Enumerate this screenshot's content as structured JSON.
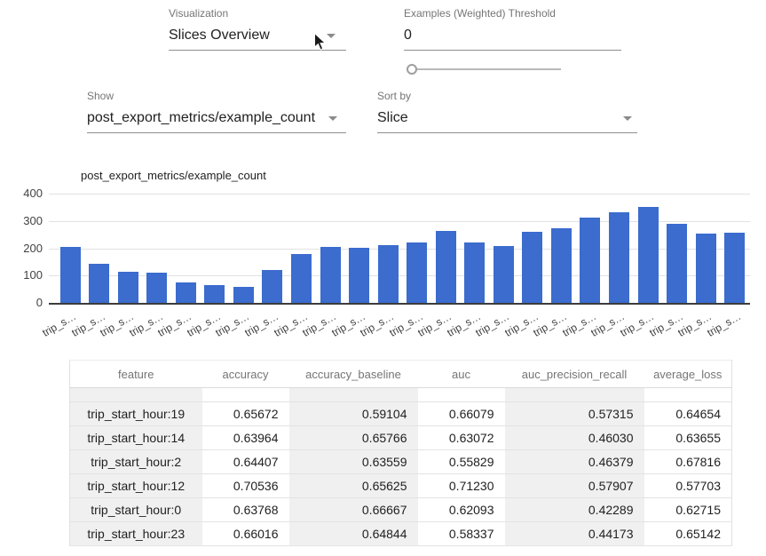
{
  "controls": {
    "visualization": {
      "label": "Visualization",
      "value": "Slices Overview"
    },
    "threshold": {
      "label": "Examples (Weighted) Threshold",
      "value": "0",
      "slider_value": 0
    },
    "show": {
      "label": "Show",
      "value": "post_export_metrics/example_count"
    },
    "sort": {
      "label": "Sort by",
      "value": "Slice"
    }
  },
  "chart_data": {
    "type": "bar",
    "legend": {
      "label": "post_export_metrics/example_count",
      "color": "#3b6cce",
      "position": "top"
    },
    "categories": [
      "trip_s…",
      "trip_s…",
      "trip_s…",
      "trip_s…",
      "trip_s…",
      "trip_s…",
      "trip_s…",
      "trip_s…",
      "trip_s…",
      "trip_s…",
      "trip_s…",
      "trip_s…",
      "trip_s…",
      "trip_s…",
      "trip_s…",
      "trip_s…",
      "trip_s…",
      "trip_s…",
      "trip_s…",
      "trip_s…",
      "trip_s…",
      "trip_s…",
      "trip_s…",
      "trip_s…"
    ],
    "values": [
      205,
      142,
      113,
      110,
      75,
      65,
      60,
      120,
      179,
      204,
      202,
      211,
      222,
      264,
      220,
      209,
      260,
      274,
      312,
      333,
      352,
      291,
      253,
      256
    ],
    "ylim": [
      0,
      400
    ],
    "yticks": [
      400,
      300,
      200,
      100,
      0
    ],
    "grid": true,
    "xlabel": "",
    "ylabel": ""
  },
  "table": {
    "columns": [
      "feature",
      "accuracy",
      "accuracy_baseline",
      "auc",
      "auc_precision_recall",
      "average_loss"
    ],
    "rows": [
      [
        "trip_start_hour:19",
        "0.65672",
        "0.59104",
        "0.66079",
        "0.57315",
        "0.64654"
      ],
      [
        "trip_start_hour:14",
        "0.63964",
        "0.65766",
        "0.63072",
        "0.46030",
        "0.63655"
      ],
      [
        "trip_start_hour:2",
        "0.64407",
        "0.63559",
        "0.55829",
        "0.46379",
        "0.67816"
      ],
      [
        "trip_start_hour:12",
        "0.70536",
        "0.65625",
        "0.71230",
        "0.57907",
        "0.57703"
      ],
      [
        "trip_start_hour:0",
        "0.63768",
        "0.66667",
        "0.62093",
        "0.42289",
        "0.62715"
      ],
      [
        "trip_start_hour:23",
        "0.66016",
        "0.64844",
        "0.58337",
        "0.44173",
        "0.65142"
      ]
    ]
  },
  "colors": {
    "bar": "#3b6cce",
    "accent_underline": "#8f8f8f",
    "shade": "#f0f0f0"
  }
}
